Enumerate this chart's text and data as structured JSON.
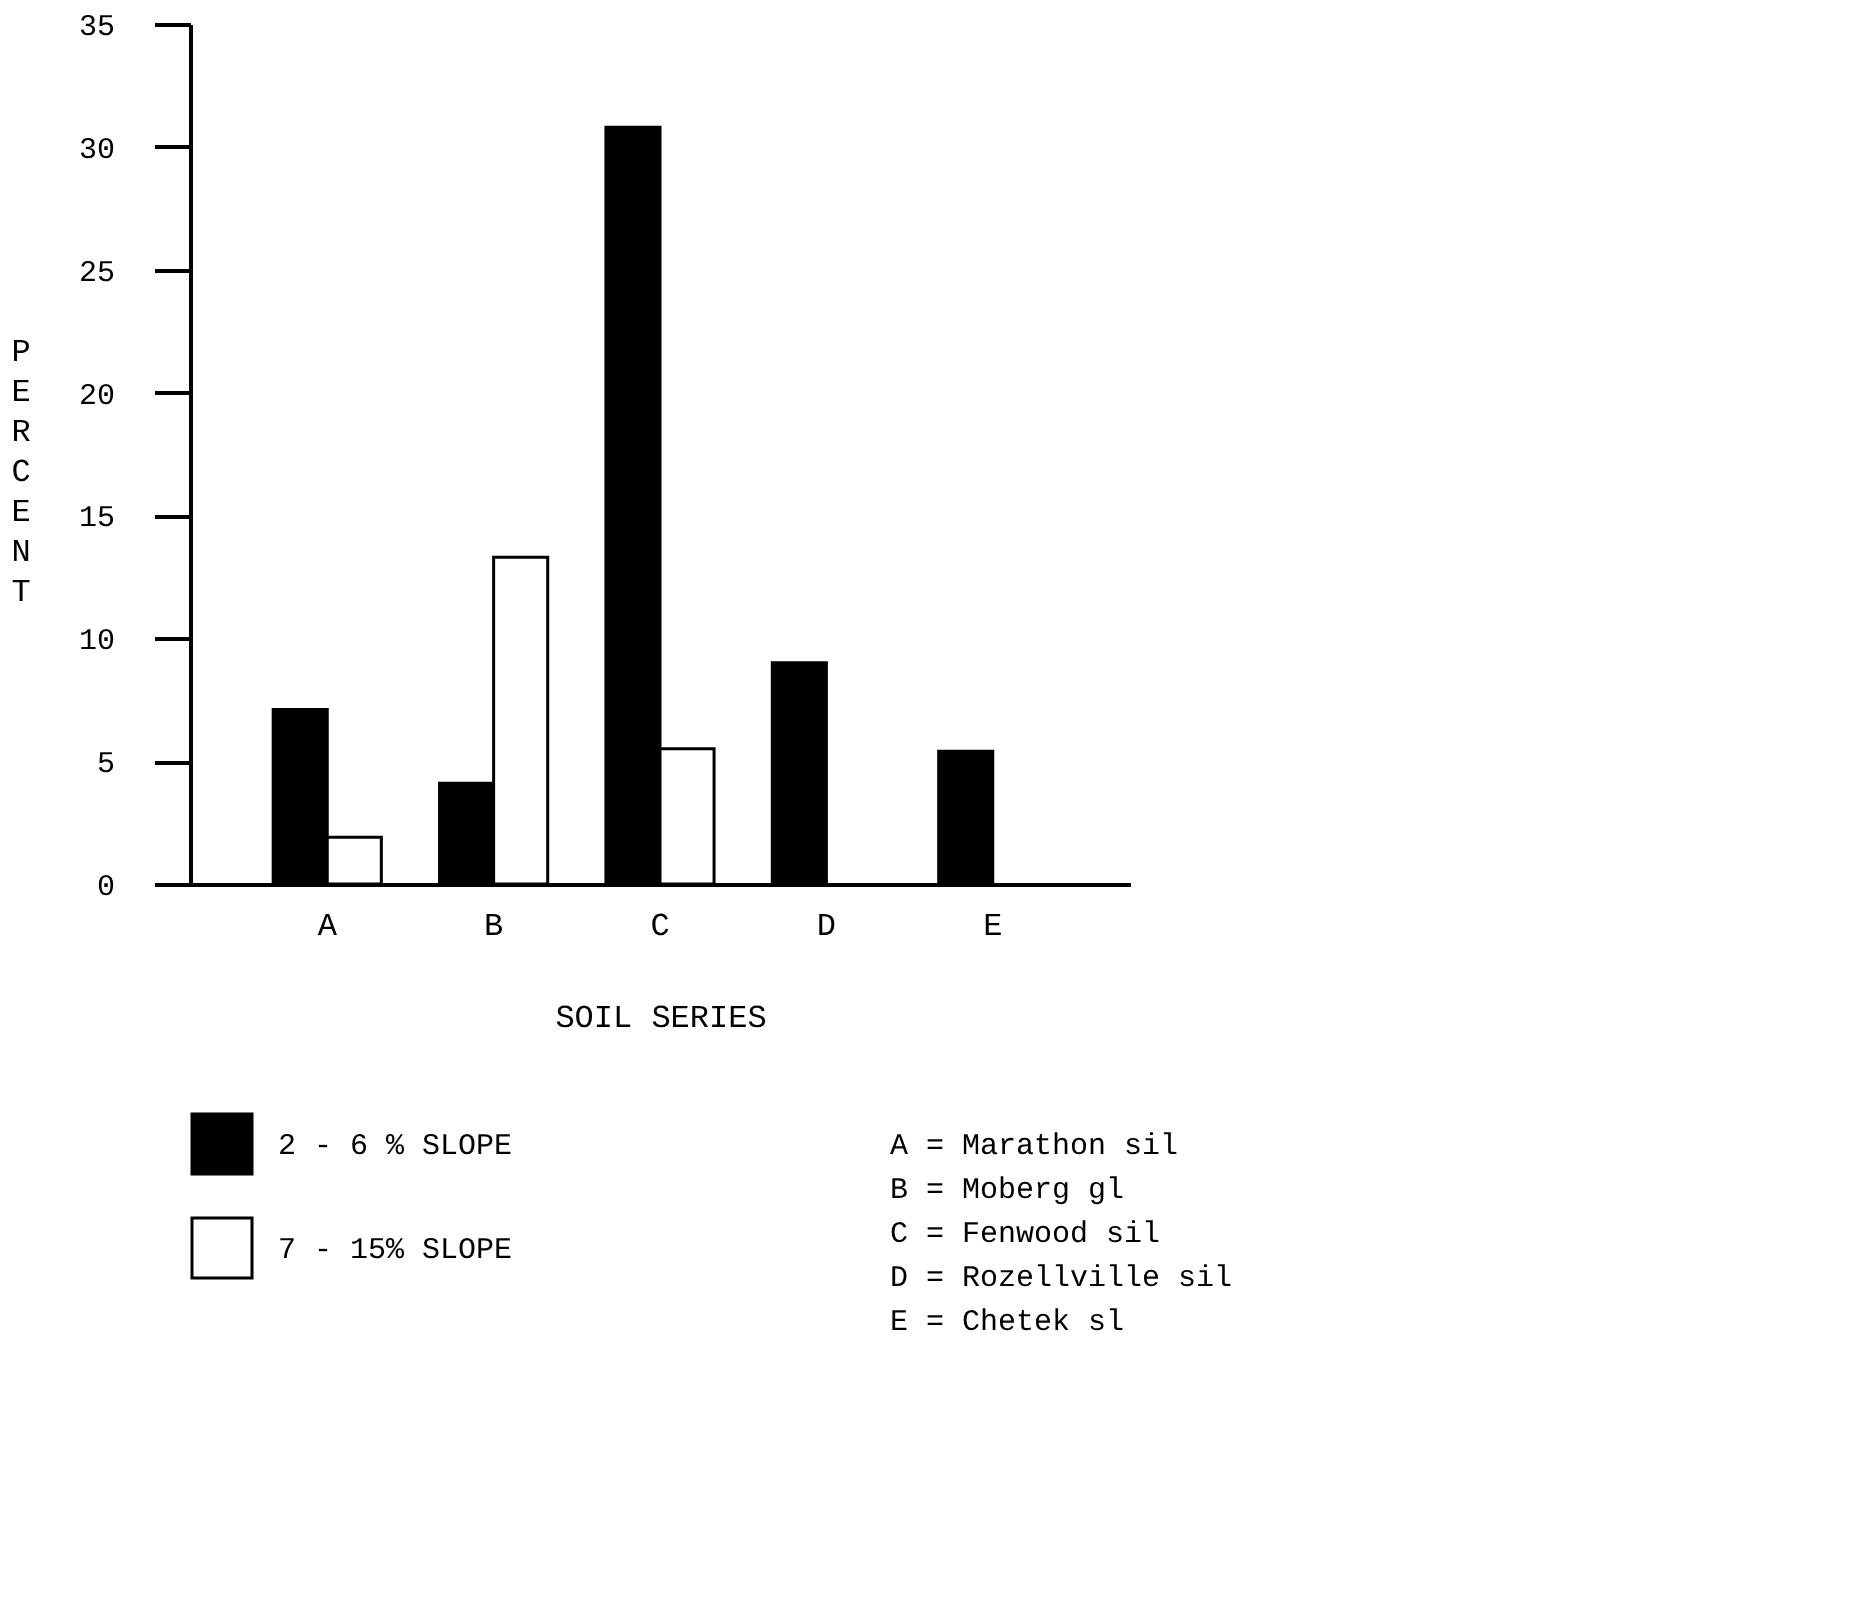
{
  "chart_data": {
    "type": "bar",
    "xlabel": "SOIL SERIES",
    "ylabel": "PERCENT",
    "categories": [
      "A",
      "B",
      "C",
      "D",
      "E"
    ],
    "series": [
      {
        "name": "2 - 6 % SLOPE",
        "color": "#000000",
        "values": [
          7.1,
          4.1,
          30.8,
          9.0,
          5.4
        ]
      },
      {
        "name": "7 - 15% SLOPE",
        "color": "#ffffff",
        "values": [
          1.9,
          13.3,
          5.5,
          null,
          null
        ]
      }
    ],
    "ylim": [
      0,
      35
    ],
    "yticks": [
      0,
      5,
      10,
      15,
      20,
      25,
      30,
      35
    ],
    "grid": false,
    "legend": "bottom",
    "annotations": [
      "A = Marathon sil",
      "B = Moberg gl",
      "C = Fenwood sil",
      "D = Rozellville sil",
      "E = Chetek sl"
    ]
  }
}
